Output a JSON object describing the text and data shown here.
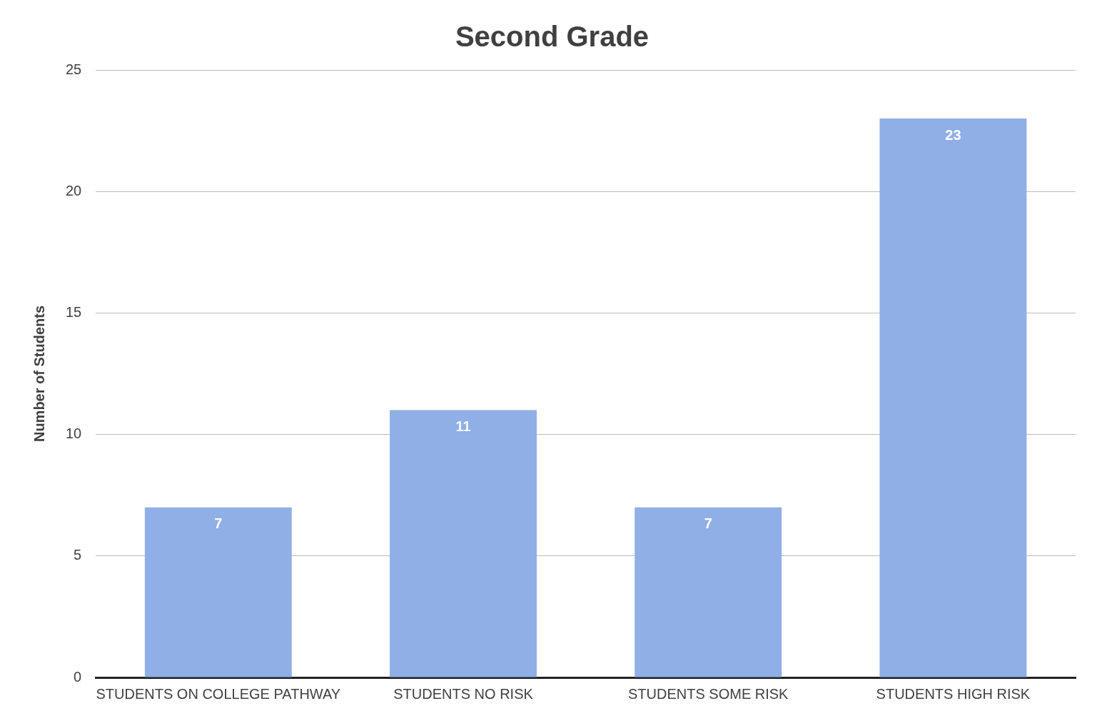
{
  "chart_data": {
    "type": "bar",
    "title": "Second Grade",
    "ylabel": "Number of Students",
    "categories": [
      "STUDENTS ON COLLEGE PATHWAY",
      "STUDENTS NO RISK",
      "STUDENTS SOME RISK",
      "STUDENTS HIGH RISK"
    ],
    "values": [
      7,
      11,
      7,
      23
    ],
    "color": "#8fafe6",
    "ylim": [
      0,
      25
    ],
    "yticks": [
      0,
      5,
      10,
      15,
      20,
      25
    ],
    "grid": "y",
    "legend": false,
    "data_labels": true
  }
}
